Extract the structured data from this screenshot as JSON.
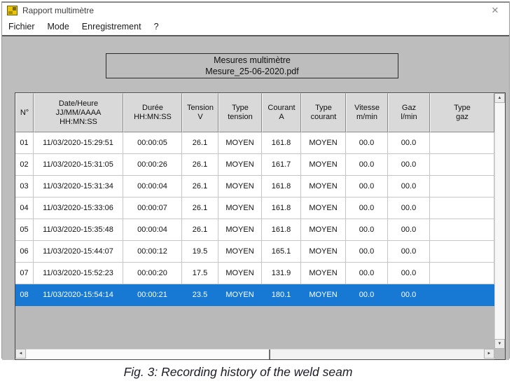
{
  "window": {
    "title": "Rapport multimètre",
    "close_icon": "✕"
  },
  "menu": {
    "items": [
      "Fichier",
      "Mode",
      "Enregistrement",
      "?"
    ]
  },
  "report_header": {
    "line1": "Mesures multimètre",
    "line2": "Mesure_25-06-2020.pdf"
  },
  "table": {
    "columns": [
      {
        "id": "num",
        "lines": [
          "N°"
        ]
      },
      {
        "id": "date-heure",
        "lines": [
          "Date/Heure",
          "JJ/MM/AAAA",
          "HH:MN:SS"
        ]
      },
      {
        "id": "duree",
        "lines": [
          "Durée",
          "HH:MN:SS"
        ]
      },
      {
        "id": "tension",
        "lines": [
          "Tension",
          "V"
        ]
      },
      {
        "id": "type-tension",
        "lines": [
          "Type",
          "tension"
        ]
      },
      {
        "id": "courant",
        "lines": [
          "Courant",
          "A"
        ]
      },
      {
        "id": "type-courant",
        "lines": [
          "Type",
          "courant"
        ]
      },
      {
        "id": "vitesse",
        "lines": [
          "Vitesse",
          "m/min"
        ]
      },
      {
        "id": "gaz",
        "lines": [
          "Gaz",
          "l/min"
        ]
      },
      {
        "id": "type-gaz",
        "lines": [
          "Type",
          "gaz"
        ]
      }
    ],
    "rows": [
      [
        "01",
        "11/03/2020-15:29:51",
        "00:00:05",
        "26.1",
        "MOYEN",
        "161.8",
        "MOYEN",
        "00.0",
        "00.0",
        ""
      ],
      [
        "02",
        "11/03/2020-15:31:05",
        "00:00:26",
        "26.1",
        "MOYEN",
        "161.7",
        "MOYEN",
        "00.0",
        "00.0",
        ""
      ],
      [
        "03",
        "11/03/2020-15:31:34",
        "00:00:04",
        "26.1",
        "MOYEN",
        "161.8",
        "MOYEN",
        "00.0",
        "00.0",
        ""
      ],
      [
        "04",
        "11/03/2020-15:33:06",
        "00:00:07",
        "26.1",
        "MOYEN",
        "161.8",
        "MOYEN",
        "00.0",
        "00.0",
        ""
      ],
      [
        "05",
        "11/03/2020-15:35:48",
        "00:00:04",
        "26.1",
        "MOYEN",
        "161.8",
        "MOYEN",
        "00.0",
        "00.0",
        ""
      ],
      [
        "06",
        "11/03/2020-15:44:07",
        "00:00:12",
        "19.5",
        "MOYEN",
        "165.1",
        "MOYEN",
        "00.0",
        "00.0",
        ""
      ],
      [
        "07",
        "11/03/2020-15:52:23",
        "00:00:20",
        "17.5",
        "MOYEN",
        "131.9",
        "MOYEN",
        "00.0",
        "00.0",
        ""
      ],
      [
        "08",
        "11/03/2020-15:54:14",
        "00:00:21",
        "23.5",
        "MOYEN",
        "180.1",
        "MOYEN",
        "00.0",
        "00.0",
        ""
      ]
    ],
    "selected_row": "08"
  },
  "scrollbar_glyphs": {
    "up": "▲",
    "down": "▼",
    "left": "◄",
    "right": "►"
  },
  "colors": {
    "selection": "#1779d3",
    "client_bg": "#bdbdbd",
    "header_cell": "#d9d9d9"
  },
  "caption": "Fig. 3: Recording history of the weld seam"
}
